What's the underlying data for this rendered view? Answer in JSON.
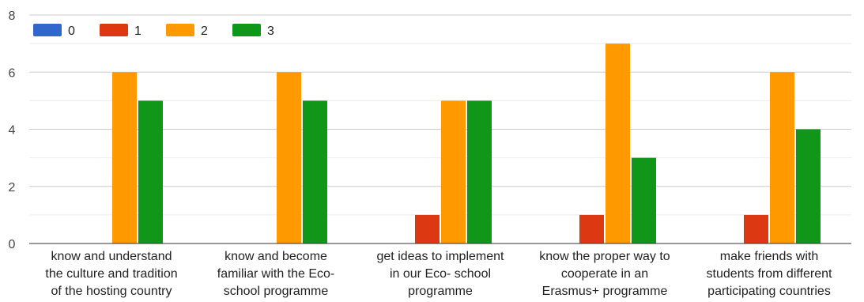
{
  "chart_data": {
    "type": "bar",
    "categories": [
      [
        "know and understand",
        "the culture and tradition",
        "of the hosting country"
      ],
      [
        "know and become",
        "familiar with the Eco-",
        "school programme"
      ],
      [
        "get ideas to implement",
        "in our Eco- school",
        "programme"
      ],
      [
        "know the proper way to",
        "cooperate in an",
        "Erasmus+ programme"
      ],
      [
        "make friends with",
        "students from different",
        "participating countries"
      ]
    ],
    "series": [
      {
        "name": "0",
        "color": "#3366cc",
        "values": [
          0,
          0,
          0,
          0,
          0
        ]
      },
      {
        "name": "1",
        "color": "#dc3912",
        "values": [
          0,
          0,
          1,
          1,
          1
        ]
      },
      {
        "name": "2",
        "color": "#ff9900",
        "values": [
          6,
          6,
          5,
          7,
          6
        ]
      },
      {
        "name": "3",
        "color": "#109618",
        "values": [
          5,
          5,
          5,
          3,
          4
        ]
      }
    ],
    "yticks": [
      0,
      2,
      4,
      6,
      8
    ],
    "ylim": [
      0,
      8
    ],
    "grid": true,
    "legend_position": "top-left",
    "title": "",
    "xlabel": "",
    "ylabel": ""
  }
}
